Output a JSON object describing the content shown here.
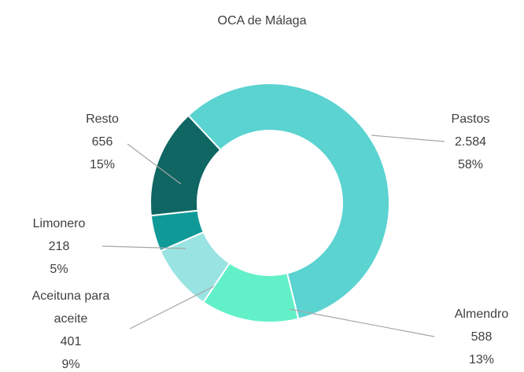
{
  "chart_data": {
    "type": "donut",
    "title": "OCA de Málaga",
    "categories": [
      "Pastos",
      "Almendro",
      "Aceituna para aceite",
      "Limonero",
      "Resto"
    ],
    "values": [
      2584,
      588,
      401,
      218,
      656
    ],
    "value_labels": [
      "2.584",
      "588",
      "401",
      "218",
      "656"
    ],
    "percentage_labels": [
      "58%",
      "13%",
      "9%",
      "5%",
      "15%"
    ],
    "colors": [
      "#5ad3d1",
      "#62f0c8",
      "#9ae3e3",
      "#0f9a98",
      "#0f6663"
    ]
  }
}
